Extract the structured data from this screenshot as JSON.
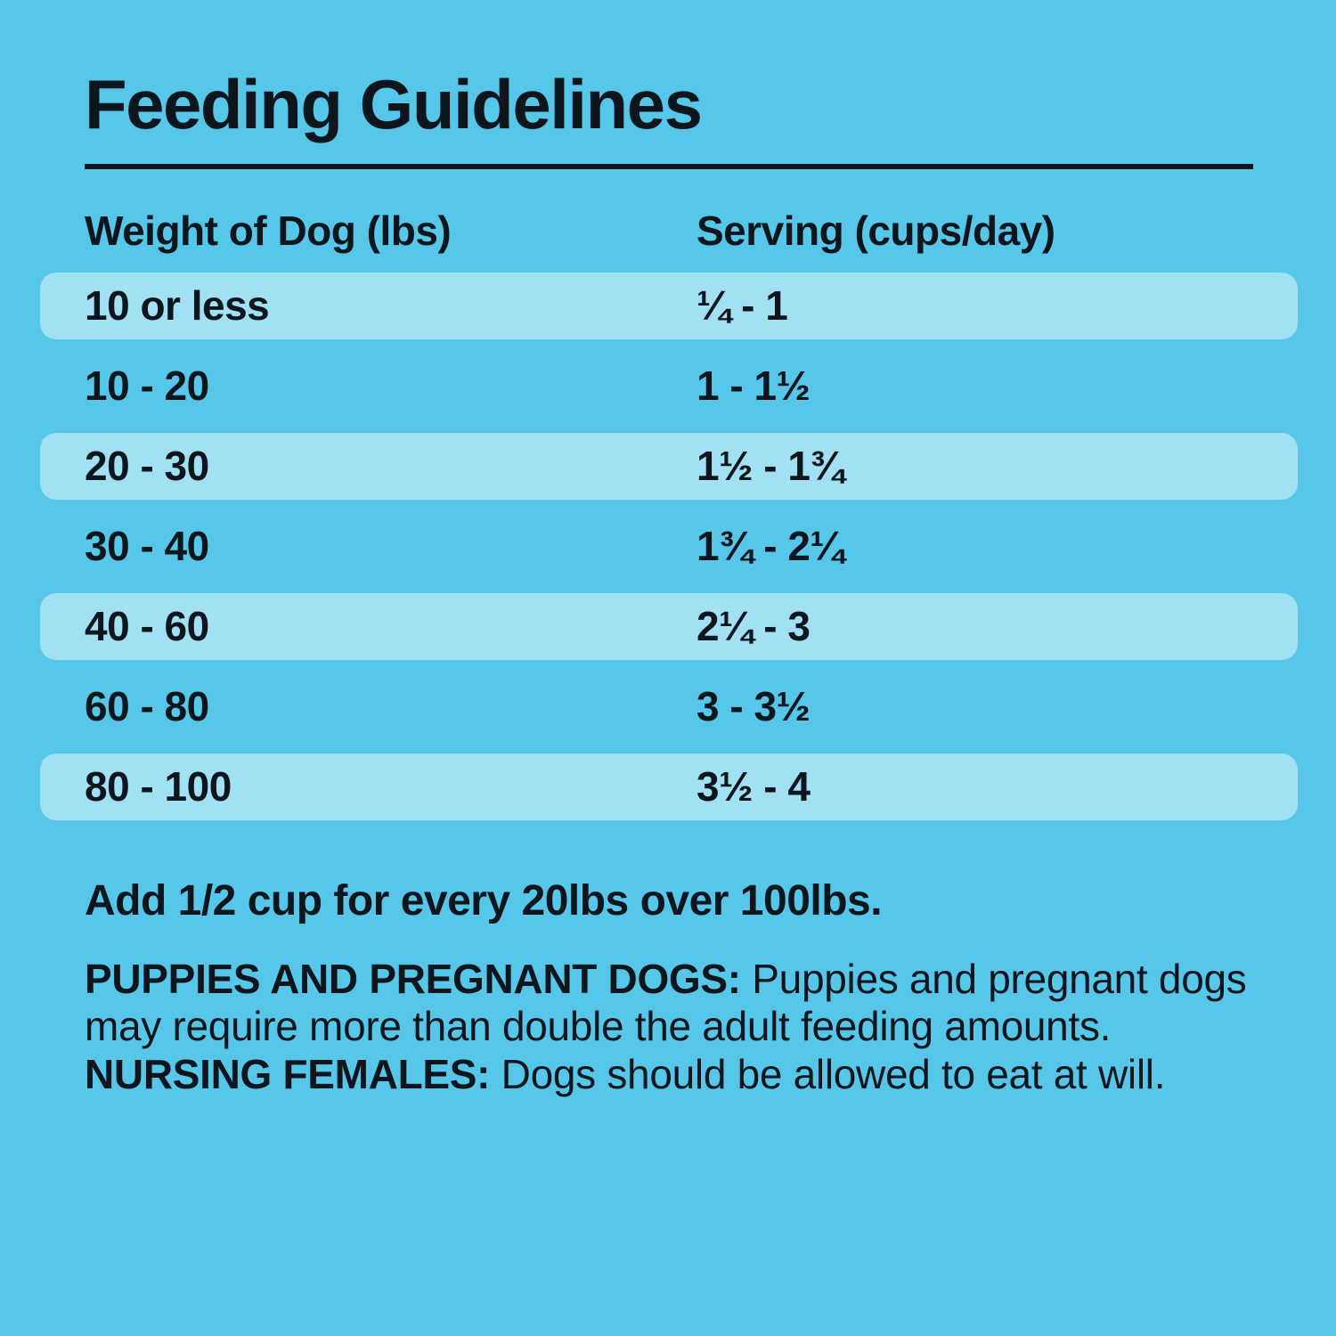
{
  "page": {
    "background_color": "#56c7e9",
    "stripe_color": "#a2e0f3",
    "text_color": "#0e161d"
  },
  "header": {
    "title": "Feeding Guidelines"
  },
  "table": {
    "columns": {
      "weight": "Weight of Dog (lbs)",
      "serving": "Serving (cups/day)"
    },
    "rows": [
      {
        "weight": "10 or less",
        "serving": "¼ - 1"
      },
      {
        "weight": "10 - 20",
        "serving": "1 - 1½"
      },
      {
        "weight": "20 - 30",
        "serving": "1½ - 1¾"
      },
      {
        "weight": "30 - 40",
        "serving": "1¾ - 2¼"
      },
      {
        "weight": "40 - 60",
        "serving": "2¼ - 3"
      },
      {
        "weight": "60 - 80",
        "serving": "3 - 3½"
      },
      {
        "weight": "80 - 100",
        "serving": "3½ - 4"
      }
    ]
  },
  "notes": {
    "para1": "Add 1/2 cup for every 20lbs over 100lbs.",
    "para2": {
      "bold1": "PUPPIES AND PREGNANT DOGS:",
      "text1": " Puppies and pregnant dogs may require more than double the adult feeding amounts. ",
      "bold2": "NURSING FEMALES:",
      "text2": " Dogs should be allowed to eat at will."
    }
  }
}
